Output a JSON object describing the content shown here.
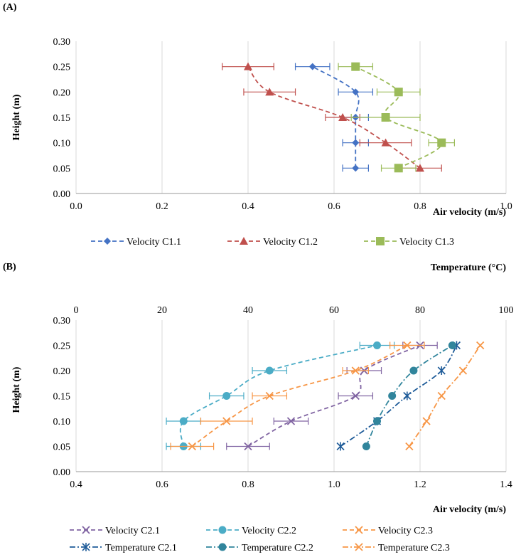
{
  "chart_data": [
    {
      "panel": "(A)",
      "type": "line",
      "xlabel": "Air velocity (m/s)",
      "ylabel": "Height (m)",
      "xlim": [
        0,
        1.0
      ],
      "xticks": [
        "0.0",
        "0.2",
        "0.4",
        "0.6",
        "0.8",
        "1.0"
      ],
      "ylim": [
        0,
        0.3
      ],
      "yticks": [
        "0.00",
        "0.05",
        "0.10",
        "0.15",
        "0.20",
        "0.25",
        "0.30"
      ],
      "grid": "vertical",
      "series": [
        {
          "name": "Velocity C1.1",
          "color": "#4472C4",
          "marker": "diamond",
          "dash": "dashed",
          "points": [
            {
              "x": 0.65,
              "y": 0.05,
              "err": 0.03
            },
            {
              "x": 0.65,
              "y": 0.1,
              "err": 0.03
            },
            {
              "x": 0.65,
              "y": 0.15,
              "err": 0.03
            },
            {
              "x": 0.65,
              "y": 0.2,
              "err": 0.04
            },
            {
              "x": 0.55,
              "y": 0.25,
              "err": 0.04
            }
          ]
        },
        {
          "name": "Velocity C1.2",
          "color": "#C0504D",
          "marker": "triangle",
          "dash": "dashed",
          "points": [
            {
              "x": 0.8,
              "y": 0.05,
              "err": 0.05
            },
            {
              "x": 0.72,
              "y": 0.1,
              "err": 0.06
            },
            {
              "x": 0.62,
              "y": 0.15,
              "err": 0.04
            },
            {
              "x": 0.45,
              "y": 0.2,
              "err": 0.06
            },
            {
              "x": 0.4,
              "y": 0.25,
              "err": 0.06
            }
          ]
        },
        {
          "name": "Velocity C1.3",
          "color": "#9BBB59",
          "marker": "square",
          "dash": "dashed",
          "points": [
            {
              "x": 0.75,
              "y": 0.05,
              "err": 0.04
            },
            {
              "x": 0.85,
              "y": 0.1,
              "err": 0.03
            },
            {
              "x": 0.72,
              "y": 0.15,
              "err": 0.08
            },
            {
              "x": 0.75,
              "y": 0.2,
              "err": 0.05
            },
            {
              "x": 0.65,
              "y": 0.25,
              "err": 0.04
            }
          ]
        }
      ]
    },
    {
      "panel": "(B)",
      "type": "line",
      "xlabel": "Air velocity (m/s)",
      "x2label": "Temperature (°C)",
      "ylabel": "Height (m)",
      "xlim": [
        0.4,
        1.4
      ],
      "xticks": [
        "0.4",
        "0.6",
        "0.8",
        "1.0",
        "1.2",
        "1.4"
      ],
      "x2lim": [
        0,
        100
      ],
      "x2ticks": [
        "0",
        "20",
        "40",
        "60",
        "80",
        "100"
      ],
      "ylim": [
        0,
        0.3
      ],
      "yticks": [
        "0.00",
        "0.05",
        "0.10",
        "0.15",
        "0.20",
        "0.25",
        "0.30"
      ],
      "grid": "vertical",
      "series": [
        {
          "name": "Velocity C2.1",
          "color": "#8064A2",
          "marker": "x",
          "dash": "dashed",
          "axis": "bottom",
          "points": [
            {
              "x": 0.8,
              "y": 0.05,
              "err": 0.05
            },
            {
              "x": 0.9,
              "y": 0.1,
              "err": 0.04
            },
            {
              "x": 1.05,
              "y": 0.15,
              "err": 0.04
            },
            {
              "x": 1.07,
              "y": 0.2,
              "err": 0.04
            },
            {
              "x": 1.2,
              "y": 0.25,
              "err": 0.04
            }
          ]
        },
        {
          "name": "Velocity C2.2",
          "color": "#4BACC6",
          "marker": "circle",
          "dash": "dashed",
          "axis": "bottom",
          "points": [
            {
              "x": 0.65,
              "y": 0.05,
              "err": 0.04
            },
            {
              "x": 0.65,
              "y": 0.1,
              "err": 0.04
            },
            {
              "x": 0.75,
              "y": 0.15,
              "err": 0.04
            },
            {
              "x": 0.85,
              "y": 0.2,
              "err": 0.04
            },
            {
              "x": 1.1,
              "y": 0.25,
              "err": 0.04
            }
          ]
        },
        {
          "name": "Velocity C2.3",
          "color": "#F79646",
          "marker": "x",
          "dash": "dashed",
          "axis": "bottom",
          "points": [
            {
              "x": 0.67,
              "y": 0.05,
              "err": 0.05
            },
            {
              "x": 0.75,
              "y": 0.1,
              "err": 0.06
            },
            {
              "x": 0.85,
              "y": 0.15,
              "err": 0.04
            },
            {
              "x": 1.05,
              "y": 0.2,
              "err": 0.03
            },
            {
              "x": 1.17,
              "y": 0.25,
              "err": 0.04
            }
          ]
        },
        {
          "name": "Temperature C2.1",
          "color": "#1F5C99",
          "marker": "asterisk",
          "dash": "dashdot",
          "axis": "top",
          "points": [
            {
              "x": 61.5,
              "y": 0.05
            },
            {
              "x": 70.0,
              "y": 0.1
            },
            {
              "x": 77.0,
              "y": 0.15
            },
            {
              "x": 85.0,
              "y": 0.2
            },
            {
              "x": 88.5,
              "y": 0.25
            }
          ]
        },
        {
          "name": "Temperature C2.2",
          "color": "#31859C",
          "marker": "circle",
          "dash": "dashdot",
          "axis": "top",
          "points": [
            {
              "x": 67.5,
              "y": 0.05
            },
            {
              "x": 70.0,
              "y": 0.1
            },
            {
              "x": 73.5,
              "y": 0.15
            },
            {
              "x": 78.5,
              "y": 0.2
            },
            {
              "x": 87.5,
              "y": 0.25
            }
          ]
        },
        {
          "name": "Temperature C2.3",
          "color": "#F79646",
          "marker": "x",
          "dash": "dashdot",
          "axis": "top",
          "points": [
            {
              "x": 77.5,
              "y": 0.05
            },
            {
              "x": 81.5,
              "y": 0.1
            },
            {
              "x": 85.0,
              "y": 0.15
            },
            {
              "x": 90.0,
              "y": 0.2
            },
            {
              "x": 94.0,
              "y": 0.25
            }
          ]
        }
      ]
    }
  ]
}
